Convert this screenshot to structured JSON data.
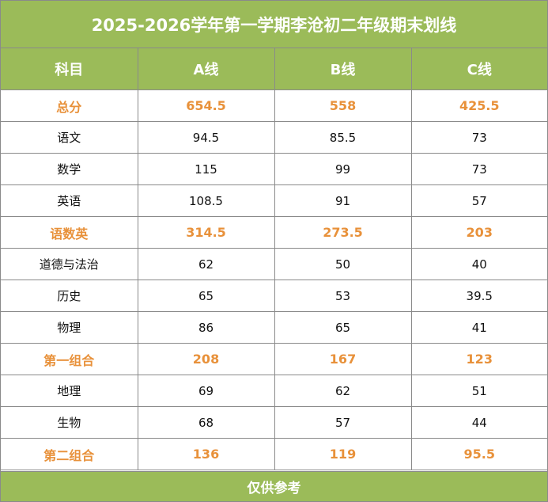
{
  "title": "2025-2026学年第一学期李沧初二年级期末划线",
  "header": [
    "科目",
    "A线",
    "B线",
    "C线"
  ],
  "rows": [
    {
      "subject": "总分",
      "a": "654.5",
      "b": "558",
      "c": "425.5",
      "highlight": true
    },
    {
      "subject": "语文",
      "a": "94.5",
      "b": "85.5",
      "c": "73",
      "highlight": false
    },
    {
      "subject": "数学",
      "a": "115",
      "b": "99",
      "c": "73",
      "highlight": false
    },
    {
      "subject": "英语",
      "a": "108.5",
      "b": "91",
      "c": "57",
      "highlight": false
    },
    {
      "subject": "语数英",
      "a": "314.5",
      "b": "273.5",
      "c": "203",
      "highlight": true
    },
    {
      "subject": "道德与法治",
      "a": "62",
      "b": "50",
      "c": "40",
      "highlight": false
    },
    {
      "subject": "历史",
      "a": "65",
      "b": "53",
      "c": "39.5",
      "highlight": false
    },
    {
      "subject": "物理",
      "a": "86",
      "b": "65",
      "c": "41",
      "highlight": false
    },
    {
      "subject": "第一组合",
      "a": "208",
      "b": "167",
      "c": "123",
      "highlight": true
    },
    {
      "subject": "地理",
      "a": "69",
      "b": "62",
      "c": "51",
      "highlight": false
    },
    {
      "subject": "生物",
      "a": "68",
      "b": "57",
      "c": "44",
      "highlight": false
    },
    {
      "subject": "第二组合",
      "a": "136",
      "b": "119",
      "c": "95.5",
      "highlight": true
    }
  ],
  "footer": "仅供参考",
  "colors": {
    "header_bg": "#9bbb59",
    "highlight_text": "#e8913a",
    "header_text": "#ffffff"
  }
}
